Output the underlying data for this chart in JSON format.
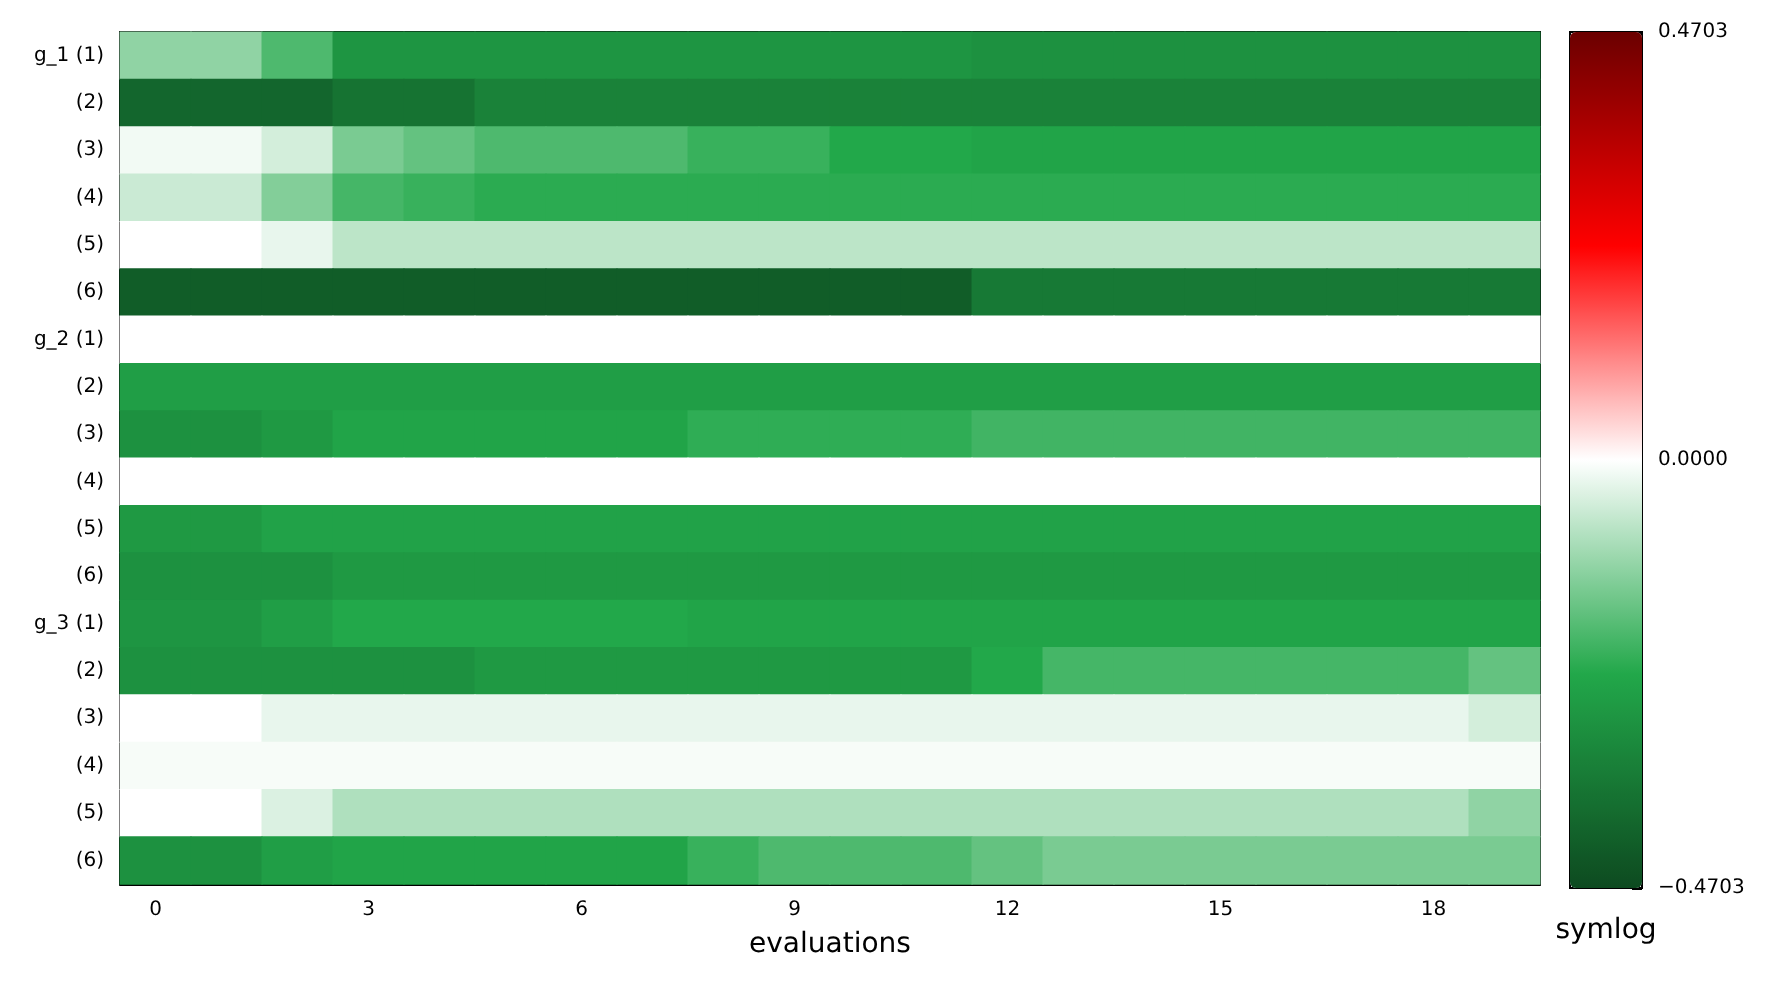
{
  "chart_data": {
    "type": "heatmap",
    "xlabel": "evaluations",
    "clabel": "symlog",
    "categories": [
      "0",
      null,
      null,
      "3",
      null,
      null,
      "6",
      null,
      null,
      "9",
      null,
      null,
      "12",
      null,
      null,
      "15",
      null,
      null,
      "18",
      null
    ],
    "y_categories": [
      "g_1 (1)",
      "(2)",
      "(3)",
      "(4)",
      "(5)",
      "(6)",
      "g_2 (1)",
      "(2)",
      "(3)",
      "(4)",
      "(5)",
      "(6)",
      "g_3 (1)",
      "(2)",
      "(3)",
      "(4)",
      "(5)",
      "(6)"
    ],
    "cells": [
      [
        -0.118,
        -0.118,
        -0.188,
        -0.282,
        -0.282,
        -0.282,
        -0.282,
        -0.282,
        -0.282,
        -0.282,
        -0.282,
        -0.282,
        -0.292,
        -0.292,
        -0.292,
        -0.292,
        -0.292,
        -0.292,
        -0.292,
        -0.292
      ],
      [
        -0.4,
        -0.4,
        -0.4,
        -0.367,
        -0.367,
        -0.329,
        -0.329,
        -0.329,
        -0.329,
        -0.329,
        -0.329,
        -0.329,
        -0.329,
        -0.329,
        -0.329,
        -0.329,
        -0.329,
        -0.329,
        -0.329,
        -0.329
      ],
      [
        -0.014,
        -0.014,
        -0.047,
        -0.141,
        -0.165,
        -0.188,
        -0.188,
        -0.188,
        -0.212,
        -0.212,
        -0.235,
        -0.235,
        -0.245,
        -0.245,
        -0.245,
        -0.245,
        -0.245,
        -0.245,
        -0.245,
        -0.245
      ],
      [
        -0.056,
        -0.056,
        -0.132,
        -0.198,
        -0.212,
        -0.226,
        -0.226,
        -0.226,
        -0.226,
        -0.226,
        -0.226,
        -0.226,
        -0.226,
        -0.226,
        -0.226,
        -0.226,
        -0.226,
        -0.226,
        -0.226,
        -0.226
      ],
      [
        0,
        0,
        -0.024,
        -0.071,
        -0.071,
        -0.071,
        -0.071,
        -0.071,
        -0.071,
        -0.071,
        -0.071,
        -0.071,
        -0.071,
        -0.071,
        -0.071,
        -0.071,
        -0.071,
        -0.071,
        -0.071,
        -0.071
      ],
      [
        -0.423,
        -0.423,
        -0.423,
        -0.423,
        -0.423,
        -0.423,
        -0.423,
        -0.423,
        -0.423,
        -0.423,
        -0.423,
        -0.423,
        -0.353,
        -0.353,
        -0.353,
        -0.353,
        -0.353,
        -0.353,
        -0.353,
        -0.353
      ],
      [
        0,
        0,
        0,
        0,
        0,
        0,
        0,
        0,
        0,
        0,
        0,
        0,
        0,
        0,
        0,
        0,
        0,
        0,
        0,
        0
      ],
      [
        -0.259,
        -0.259,
        -0.259,
        -0.259,
        -0.259,
        -0.259,
        -0.259,
        -0.259,
        -0.259,
        -0.259,
        -0.259,
        -0.259,
        -0.259,
        -0.259,
        -0.259,
        -0.259,
        -0.259,
        -0.259,
        -0.259,
        -0.259
      ],
      [
        -0.292,
        -0.292,
        -0.273,
        -0.245,
        -0.245,
        -0.245,
        -0.245,
        -0.245,
        -0.221,
        -0.221,
        -0.221,
        -0.221,
        -0.202,
        -0.202,
        -0.202,
        -0.202,
        -0.202,
        -0.202,
        -0.202,
        -0.202
      ],
      [
        0,
        0,
        0,
        0,
        0,
        0,
        0,
        0,
        0,
        0,
        0,
        0,
        0,
        0,
        0,
        0,
        0,
        0,
        0,
        0
      ],
      [
        -0.273,
        -0.273,
        -0.249,
        -0.249,
        -0.249,
        -0.249,
        -0.249,
        -0.249,
        -0.249,
        -0.249,
        -0.249,
        -0.249,
        -0.249,
        -0.249,
        -0.249,
        -0.249,
        -0.249,
        -0.249,
        -0.249,
        -0.249
      ],
      [
        -0.292,
        -0.292,
        -0.292,
        -0.273,
        -0.273,
        -0.273,
        -0.273,
        -0.273,
        -0.273,
        -0.273,
        -0.273,
        -0.273,
        -0.273,
        -0.273,
        -0.273,
        -0.273,
        -0.273,
        -0.273,
        -0.273,
        -0.273
      ],
      [
        -0.282,
        -0.282,
        -0.259,
        -0.235,
        -0.235,
        -0.235,
        -0.235,
        -0.235,
        -0.245,
        -0.245,
        -0.245,
        -0.245,
        -0.245,
        -0.245,
        -0.245,
        -0.245,
        -0.245,
        -0.245,
        -0.245,
        -0.245
      ],
      [
        -0.292,
        -0.292,
        -0.292,
        -0.292,
        -0.292,
        -0.273,
        -0.273,
        -0.273,
        -0.273,
        -0.273,
        -0.273,
        -0.273,
        -0.235,
        -0.198,
        -0.198,
        -0.198,
        -0.198,
        -0.198,
        -0.198,
        -0.165
      ],
      [
        0,
        0,
        -0.024,
        -0.024,
        -0.024,
        -0.024,
        -0.024,
        -0.024,
        -0.024,
        -0.024,
        -0.024,
        -0.024,
        -0.024,
        -0.024,
        -0.024,
        -0.024,
        -0.024,
        -0.024,
        -0.024,
        -0.047
      ],
      [
        -0.009,
        -0.009,
        -0.009,
        -0.009,
        -0.009,
        -0.009,
        -0.009,
        -0.009,
        -0.009,
        -0.009,
        -0.009,
        -0.009,
        -0.009,
        -0.009,
        -0.009,
        -0.009,
        -0.009,
        -0.009,
        -0.009,
        -0.009
      ],
      [
        0,
        0,
        -0.038,
        -0.085,
        -0.085,
        -0.085,
        -0.085,
        -0.085,
        -0.085,
        -0.085,
        -0.085,
        -0.085,
        -0.085,
        -0.085,
        -0.085,
        -0.085,
        -0.085,
        -0.085,
        -0.085,
        -0.118
      ],
      [
        -0.292,
        -0.292,
        -0.259,
        -0.245,
        -0.245,
        -0.245,
        -0.245,
        -0.245,
        -0.212,
        -0.188,
        -0.188,
        -0.188,
        -0.165,
        -0.141,
        -0.141,
        -0.141,
        -0.141,
        -0.141,
        -0.141,
        -0.141
      ]
    ],
    "clim": [
      -0.4703,
      0.4703
    ],
    "cticks": [
      {
        "value": -0.4703,
        "label": "−0.4703"
      },
      {
        "value": 0,
        "label": "0.0000"
      },
      {
        "value": 0.4703,
        "label": "0.4703"
      }
    ]
  }
}
